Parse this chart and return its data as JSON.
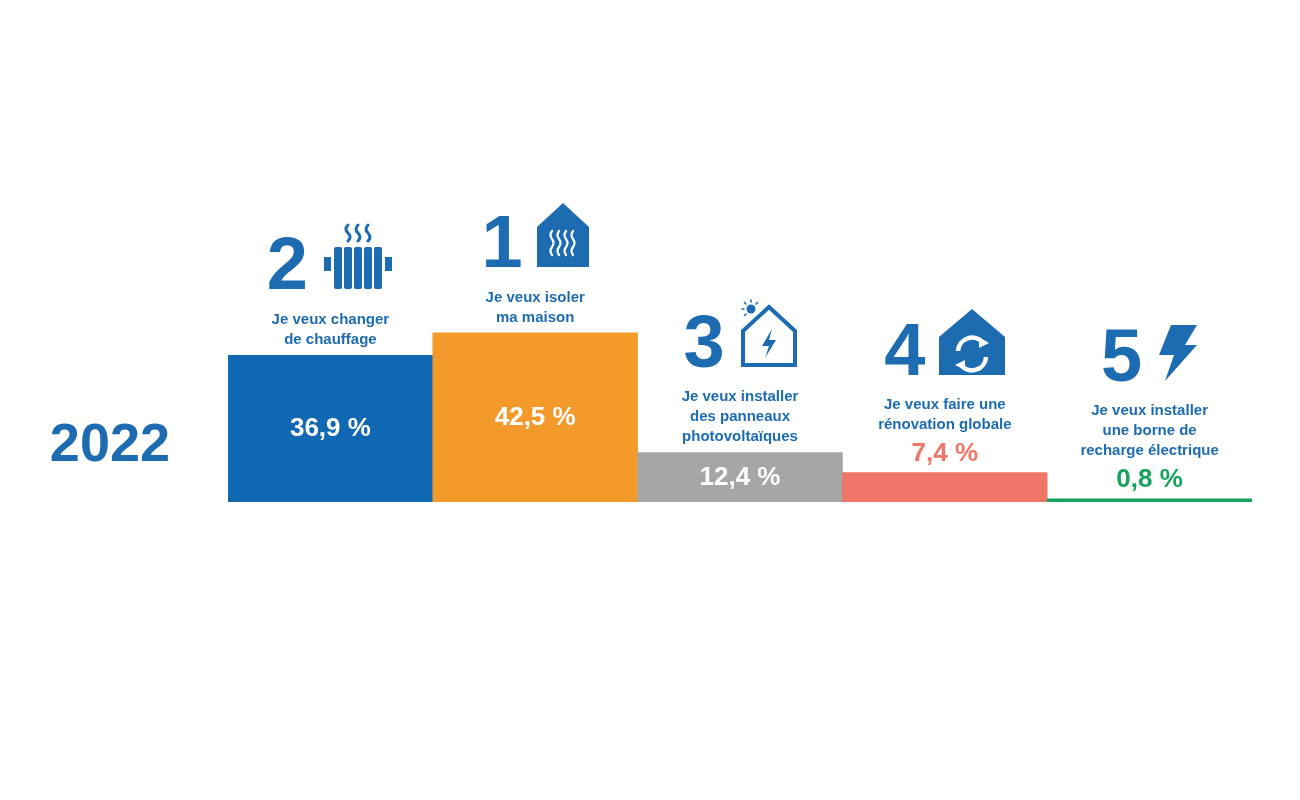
{
  "chart_data": {
    "type": "bar",
    "categories": [
      "Je veux changer de chauffage",
      "Je veux isoler ma maison",
      "Je veux installer des panneaux photovoltaïques",
      "Je veux faire une rénovation globale",
      "Je veux installer une borne de recharge électrique"
    ],
    "series": [
      {
        "name": "2022",
        "colors": [
          "#1067b2",
          "#f39a2b",
          "#a6a6a6",
          "#ef7666",
          "#17a35c"
        ],
        "values": [
          36.9,
          42.5,
          12.4,
          7.4,
          0.8
        ],
        "value_labels": [
          "36,9 %",
          "42,5 %",
          "12,4 %",
          "7,4 %",
          "0,8 %"
        ]
      }
    ],
    "annotations": [
      "2",
      "1",
      "3",
      "4",
      "5"
    ],
    "tick_labels": "x"
  }
}
